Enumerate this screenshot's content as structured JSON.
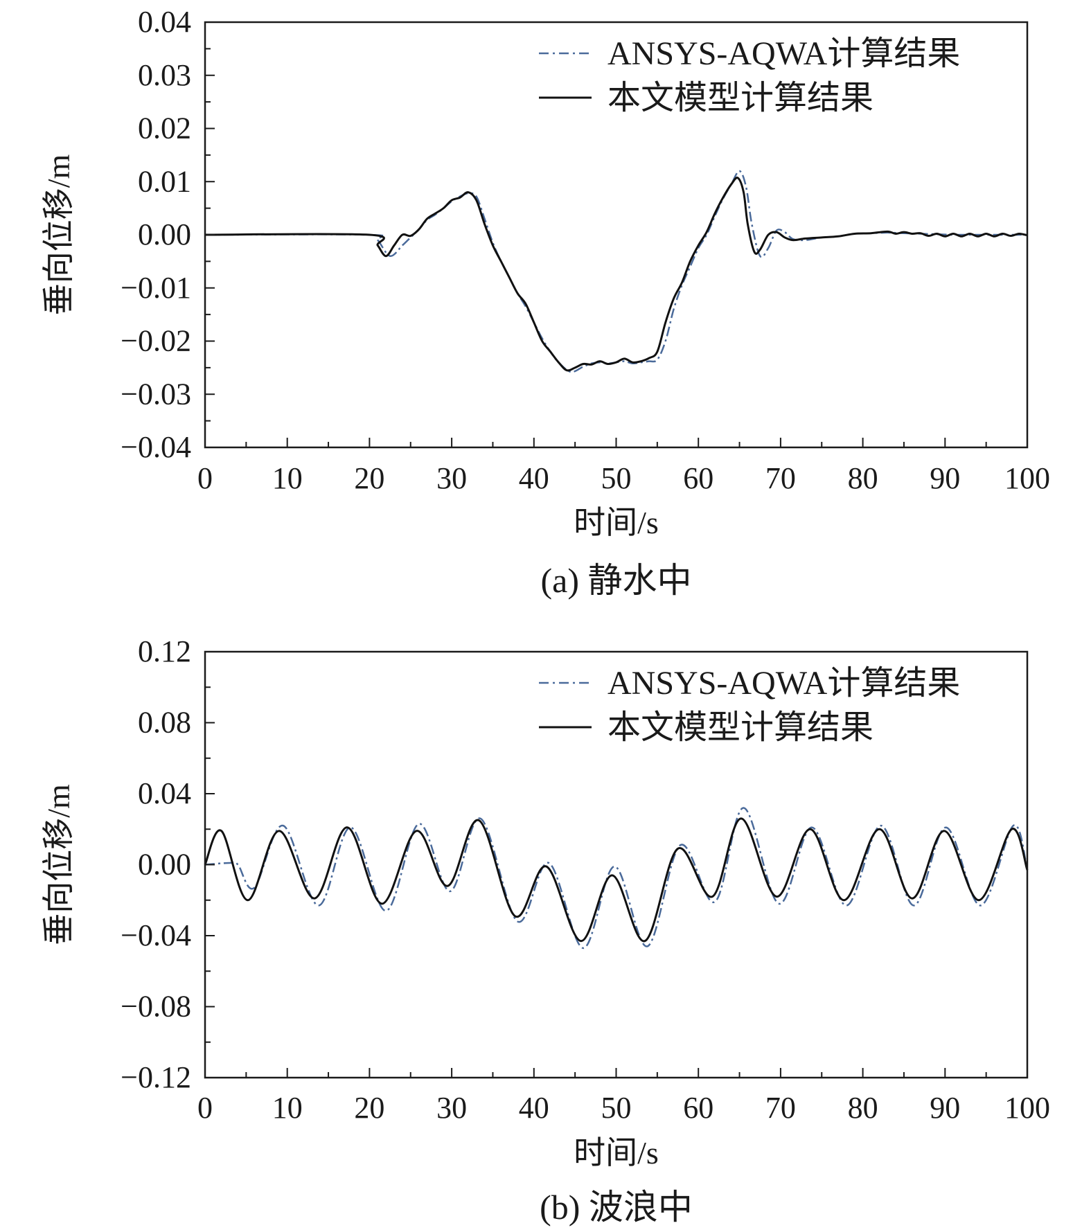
{
  "chart_data": [
    {
      "type": "line",
      "caption": "(a) 静水中",
      "xlabel": "时间/s",
      "ylabel": "垂向位移/m",
      "xlim": [
        0,
        100
      ],
      "ylim": [
        -0.04,
        0.04
      ],
      "xticks": [
        "0",
        "10",
        "20",
        "30",
        "40",
        "50",
        "60",
        "70",
        "80",
        "90",
        "100"
      ],
      "yticks": [
        "0.04",
        "0.03",
        "0.02",
        "0.01",
        "0.00",
        "−0.01",
        "−0.02",
        "−0.03",
        "−0.04"
      ],
      "legend_position": "top-right",
      "grid": false,
      "series": [
        {
          "name": "ANSYS-AQWA计算结果",
          "style": "dash-dot",
          "color": "#4a6a9a",
          "x": [
            0,
            20,
            21,
            22.5,
            24,
            25,
            26,
            27,
            28,
            29,
            30,
            31,
            32,
            33,
            34,
            35,
            36,
            37,
            38,
            39,
            40,
            41,
            42,
            43,
            44.5,
            46,
            47,
            48,
            49,
            50,
            51,
            52,
            53,
            54,
            55,
            56,
            57,
            58,
            59,
            60,
            61,
            62,
            63,
            64,
            65,
            65.8,
            66.5,
            67.5,
            68.5,
            69.5,
            70.5,
            71.5,
            73,
            75,
            77,
            79,
            81,
            83,
            85,
            87,
            89,
            91,
            93,
            95,
            97,
            99,
            100
          ],
          "y": [
            0,
            0,
            -0.001,
            -0.004,
            -0.002,
            -0.0005,
            0.001,
            0.0028,
            0.0038,
            0.005,
            0.0063,
            0.0072,
            0.0078,
            0.0072,
            0.003,
            -0.0015,
            -0.005,
            -0.008,
            -0.011,
            -0.0135,
            -0.0165,
            -0.0195,
            -0.022,
            -0.024,
            -0.0258,
            -0.0248,
            -0.0242,
            -0.024,
            -0.0242,
            -0.024,
            -0.0238,
            -0.0242,
            -0.024,
            -0.0238,
            -0.0235,
            -0.02,
            -0.014,
            -0.0095,
            -0.006,
            -0.0025,
            0,
            0.0035,
            0.0068,
            0.0095,
            0.012,
            0.009,
            0.002,
            -0.004,
            -0.0025,
            0.0008,
            0.0005,
            -0.0008,
            -0.001,
            -0.0005,
            -0.0003,
            0.0002,
            0.0003,
            0.0004,
            0.0003,
            0.0002,
            0.0001,
            0,
            0,
            0,
            0,
            0,
            0
          ]
        },
        {
          "name": "本文模型计算结果",
          "style": "solid",
          "color": "#111111",
          "x": [
            0,
            20,
            21,
            22,
            23,
            24,
            25,
            26,
            27,
            28,
            29,
            30,
            31,
            32,
            33,
            34,
            35,
            36,
            37,
            38,
            39,
            40,
            41,
            42,
            43,
            44,
            45,
            46,
            47,
            48,
            49,
            50,
            51,
            52,
            53,
            54,
            55,
            56,
            57,
            58,
            59,
            60,
            61,
            62,
            63,
            64,
            64.8,
            65.5,
            66,
            66.8,
            67.5,
            68.5,
            69.5,
            70.5,
            71.5,
            73,
            75,
            77,
            79,
            81,
            83,
            84,
            85,
            86,
            87,
            88,
            89,
            90,
            91,
            92,
            93,
            94,
            95,
            96,
            97,
            98,
            99,
            100
          ],
          "y": [
            0,
            0,
            -0.002,
            -0.004,
            -0.002,
            0,
            -0.0002,
            0.001,
            0.003,
            0.004,
            0.005,
            0.0065,
            0.007,
            0.008,
            0.0065,
            0.002,
            -0.002,
            -0.005,
            -0.008,
            -0.011,
            -0.013,
            -0.0165,
            -0.02,
            -0.022,
            -0.024,
            -0.0255,
            -0.025,
            -0.0243,
            -0.0244,
            -0.0238,
            -0.0243,
            -0.024,
            -0.0233,
            -0.024,
            -0.0238,
            -0.0232,
            -0.022,
            -0.0165,
            -0.012,
            -0.009,
            -0.005,
            -0.002,
            0.0005,
            0.004,
            0.007,
            0.0095,
            0.0107,
            0.008,
            0.002,
            -0.0032,
            -0.0028,
            0,
            0.0005,
            -0.0005,
            -0.001,
            -0.0007,
            -0.0005,
            -0.0003,
            0.0002,
            0.0003,
            0.0006,
            0.0002,
            0.0005,
            0.0002,
            0.0003,
            -0.0002,
            0.0002,
            -0.0003,
            0.0002,
            -0.0003,
            0.0002,
            -0.0003,
            0.0002,
            -0.0003,
            0.0002,
            -0.0002,
            0.0002,
            -0.0001
          ]
        }
      ]
    },
    {
      "type": "line",
      "caption": "(b) 波浪中",
      "xlabel": "时间/s",
      "ylabel": "垂向位移/m",
      "xlim": [
        0,
        100
      ],
      "ylim": [
        -0.12,
        0.12
      ],
      "xticks": [
        "0",
        "10",
        "20",
        "30",
        "40",
        "50",
        "60",
        "70",
        "80",
        "90",
        "100"
      ],
      "yticks": [
        "0.12",
        "0.08",
        "0.04",
        "0.00",
        "−0.04",
        "−0.08",
        "−0.12"
      ],
      "legend_position": "top-right",
      "grid": false,
      "series": [
        {
          "name": "ANSYS-AQWA计算结果",
          "style": "dash-dot",
          "color": "#4a6a9a",
          "x": [
            0,
            3,
            4,
            6,
            9.5,
            13.8,
            17.7,
            22,
            26,
            29.8,
            33.5,
            38,
            41.8,
            46,
            49.8,
            53.8,
            57.8,
            62,
            65.5,
            69.8,
            73.8,
            78,
            82.2,
            86.2,
            90.1,
            94.3,
            98.3,
            100
          ],
          "y": [
            0,
            0.001,
            0,
            -0.013,
            0.022,
            -0.023,
            0.021,
            -0.026,
            0.023,
            -0.015,
            0.026,
            -0.032,
            0.001,
            -0.047,
            -0.001,
            -0.046,
            0.011,
            -0.021,
            0.032,
            -0.022,
            0.021,
            -0.023,
            0.022,
            -0.023,
            0.021,
            -0.023,
            0.022,
            -0.003
          ]
        },
        {
          "name": "本文模型计算结果",
          "style": "solid",
          "color": "#111111",
          "x": [
            0,
            2,
            5.2,
            9,
            13.3,
            17.3,
            21.5,
            25.7,
            29.5,
            33.3,
            37.7,
            41.5,
            45.7,
            49.5,
            53.5,
            57.5,
            61.7,
            65.2,
            69.5,
            73.6,
            77.7,
            82,
            86,
            89.9,
            94.1,
            98.1,
            100
          ],
          "y": [
            0,
            0.019,
            -0.02,
            0.019,
            -0.019,
            0.021,
            -0.022,
            0.019,
            -0.012,
            0.025,
            -0.029,
            -0.001,
            -0.043,
            -0.006,
            -0.043,
            0.009,
            -0.018,
            0.026,
            -0.018,
            0.02,
            -0.02,
            0.02,
            -0.019,
            0.019,
            -0.02,
            0.02,
            -0.003
          ]
        }
      ]
    }
  ]
}
